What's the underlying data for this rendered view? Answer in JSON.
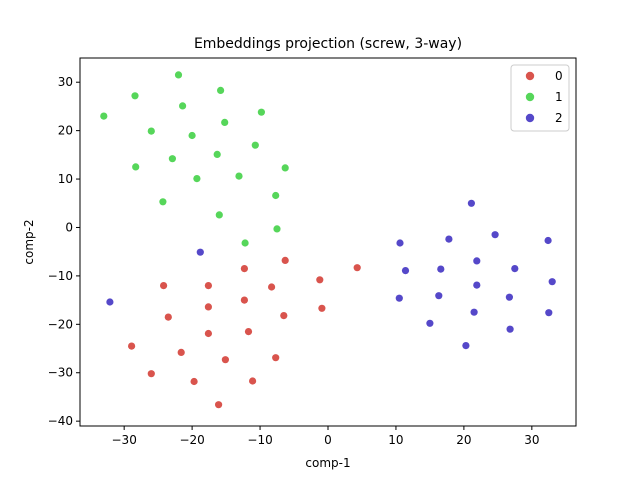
{
  "chart_data": {
    "type": "scatter",
    "title": "Embeddings projection (screw, 3-way)",
    "xlabel": "comp-1",
    "ylabel": "comp-2",
    "xlim": [
      -36.5,
      36.5
    ],
    "ylim": [
      -41,
      35
    ],
    "xticks": [
      -30,
      -20,
      -10,
      0,
      10,
      20,
      30
    ],
    "yticks": [
      -40,
      -30,
      -20,
      -10,
      0,
      10,
      20,
      30
    ],
    "grid": false,
    "legend_position": "top-right",
    "series": [
      {
        "name": "0",
        "color": "#d9544d",
        "points": [
          [
            4.3,
            -8.3
          ],
          [
            -6.3,
            -6.8
          ],
          [
            -12.3,
            -8.5
          ],
          [
            -1.2,
            -10.8
          ],
          [
            -24.2,
            -12.0
          ],
          [
            -17.6,
            -12.0
          ],
          [
            -8.3,
            -12.3
          ],
          [
            -12.3,
            -15.0
          ],
          [
            -17.6,
            -16.4
          ],
          [
            -0.9,
            -16.7
          ],
          [
            -23.5,
            -18.5
          ],
          [
            -6.5,
            -18.2
          ],
          [
            -17.6,
            -21.9
          ],
          [
            -11.7,
            -21.5
          ],
          [
            -28.9,
            -24.5
          ],
          [
            -21.6,
            -25.8
          ],
          [
            -15.1,
            -27.3
          ],
          [
            -7.7,
            -26.9
          ],
          [
            -26.0,
            -30.2
          ],
          [
            -19.7,
            -31.8
          ],
          [
            -11.1,
            -31.7
          ],
          [
            -16.1,
            -36.6
          ]
        ]
      },
      {
        "name": "1",
        "color": "#56d65a",
        "points": [
          [
            -22.0,
            31.5
          ],
          [
            -28.4,
            27.2
          ],
          [
            -15.8,
            28.3
          ],
          [
            -21.4,
            25.1
          ],
          [
            -33.0,
            23.0
          ],
          [
            -9.8,
            23.8
          ],
          [
            -15.2,
            21.7
          ],
          [
            -26.0,
            19.9
          ],
          [
            -20.0,
            19.0
          ],
          [
            -10.7,
            17.0
          ],
          [
            -16.3,
            15.1
          ],
          [
            -22.9,
            14.2
          ],
          [
            -28.3,
            12.5
          ],
          [
            -6.3,
            12.3
          ],
          [
            -13.1,
            10.6
          ],
          [
            -19.3,
            10.1
          ],
          [
            -7.7,
            6.6
          ],
          [
            -24.3,
            5.3
          ],
          [
            -16.0,
            2.6
          ],
          [
            -7.5,
            -0.3
          ],
          [
            -12.2,
            -3.2
          ]
        ]
      },
      {
        "name": "2",
        "color": "#5548c9",
        "points": [
          [
            21.1,
            5.0
          ],
          [
            24.6,
            -1.5
          ],
          [
            17.8,
            -2.4
          ],
          [
            32.4,
            -2.7
          ],
          [
            10.6,
            -3.2
          ],
          [
            -18.8,
            -5.1
          ],
          [
            21.9,
            -6.9
          ],
          [
            11.4,
            -8.9
          ],
          [
            16.6,
            -8.6
          ],
          [
            27.5,
            -8.5
          ],
          [
            33.0,
            -11.2
          ],
          [
            21.9,
            -11.9
          ],
          [
            10.5,
            -14.6
          ],
          [
            16.3,
            -14.1
          ],
          [
            26.7,
            -14.4
          ],
          [
            -32.1,
            -15.4
          ],
          [
            21.5,
            -17.5
          ],
          [
            32.5,
            -17.6
          ],
          [
            15.0,
            -19.8
          ],
          [
            26.8,
            -21.0
          ],
          [
            20.3,
            -24.4
          ]
        ]
      }
    ]
  }
}
